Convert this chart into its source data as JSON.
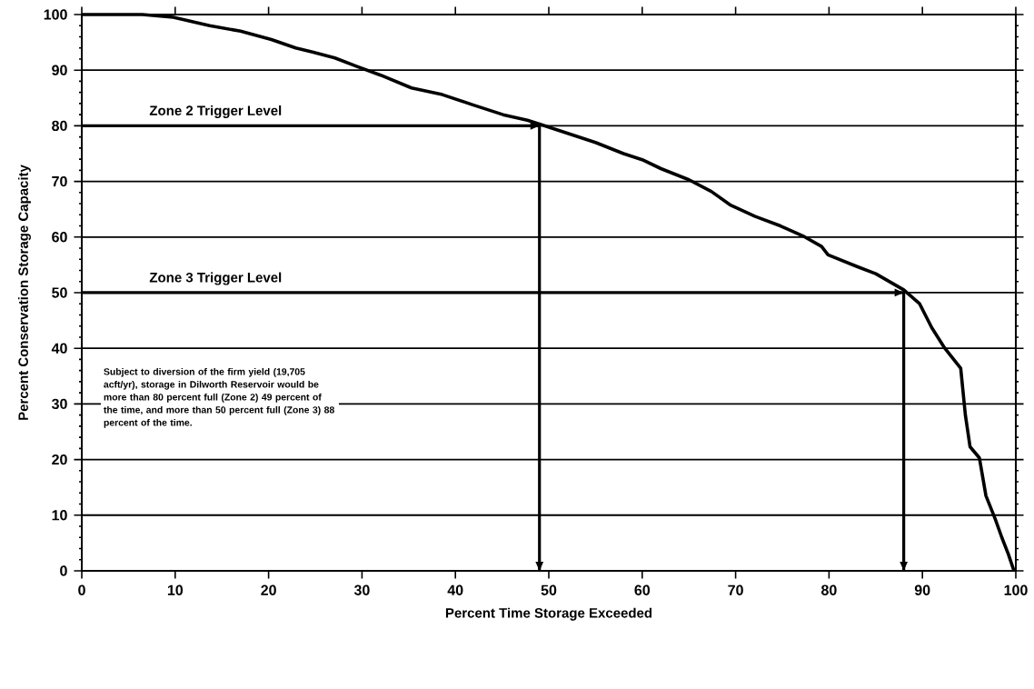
{
  "chart_data": {
    "type": "line",
    "xlabel": "Percent Time Storage Exceeded",
    "ylabel": "Percent Conservation Storage Capacity",
    "xlim": [
      0,
      100
    ],
    "ylim": [
      0,
      100
    ],
    "xticks": [
      0,
      10,
      20,
      30,
      40,
      50,
      60,
      70,
      80,
      90,
      100
    ],
    "yticks": [
      0,
      10,
      20,
      30,
      40,
      50,
      60,
      70,
      80,
      90,
      100
    ],
    "grid": "y",
    "marker": "none",
    "line_style": "solid",
    "series": [
      {
        "color": "#000000",
        "x": [
          0,
          6.5,
          9.8,
          13.7,
          17,
          20.3,
          22.9,
          24.8,
          27.1,
          29.4,
          32,
          35.3,
          38.6,
          41.8,
          45.1,
          47.7,
          49,
          51,
          55,
          58,
          60,
          62,
          65,
          67.4,
          69.4,
          72.1,
          74.8,
          77.2,
          79.2,
          79.9,
          83,
          85,
          88,
          89.7,
          91,
          92.4,
          94.1,
          94.6,
          95.1,
          96.1,
          96.8,
          97.8,
          98.5,
          99.2,
          99.8
        ],
        "values": [
          100,
          100,
          99.5,
          98,
          97,
          95.5,
          94,
          93.2,
          92.2,
          90.7,
          89.1,
          86.8,
          85.6,
          83.8,
          82,
          81,
          80.3,
          79.2,
          77,
          75,
          73.9,
          72.3,
          70.3,
          68.2,
          65.8,
          63.7,
          62,
          60.2,
          58.3,
          56.8,
          54.7,
          53.4,
          50.5,
          48,
          43.7,
          40,
          36.4,
          28,
          22.3,
          20.3,
          13.5,
          9.3,
          6,
          3,
          0
        ]
      },
      {
        "color": "#000000",
        "x": [
          0,
          49
        ],
        "values": [
          80,
          80
        ]
      },
      {
        "color": "#000000",
        "x": [
          49,
          49
        ],
        "values": [
          80,
          0
        ]
      },
      {
        "color": "#000000",
        "x": [
          0,
          88
        ],
        "values": [
          50,
          50
        ]
      },
      {
        "color": "#000000",
        "x": [
          88,
          88
        ],
        "values": [
          50,
          0
        ]
      }
    ],
    "annotations": [
      "Zone 2 Trigger Level",
      "Zone 3 Trigger Level",
      "Subject to diversion of the firm yield (19,705 acft/yr), storage in Dilworth Reservoir would be more than 80 percent full (Zone 2) 49 percent of the time, and more than 50 percent full (Zone 3) 88 percent of the time."
    ]
  }
}
